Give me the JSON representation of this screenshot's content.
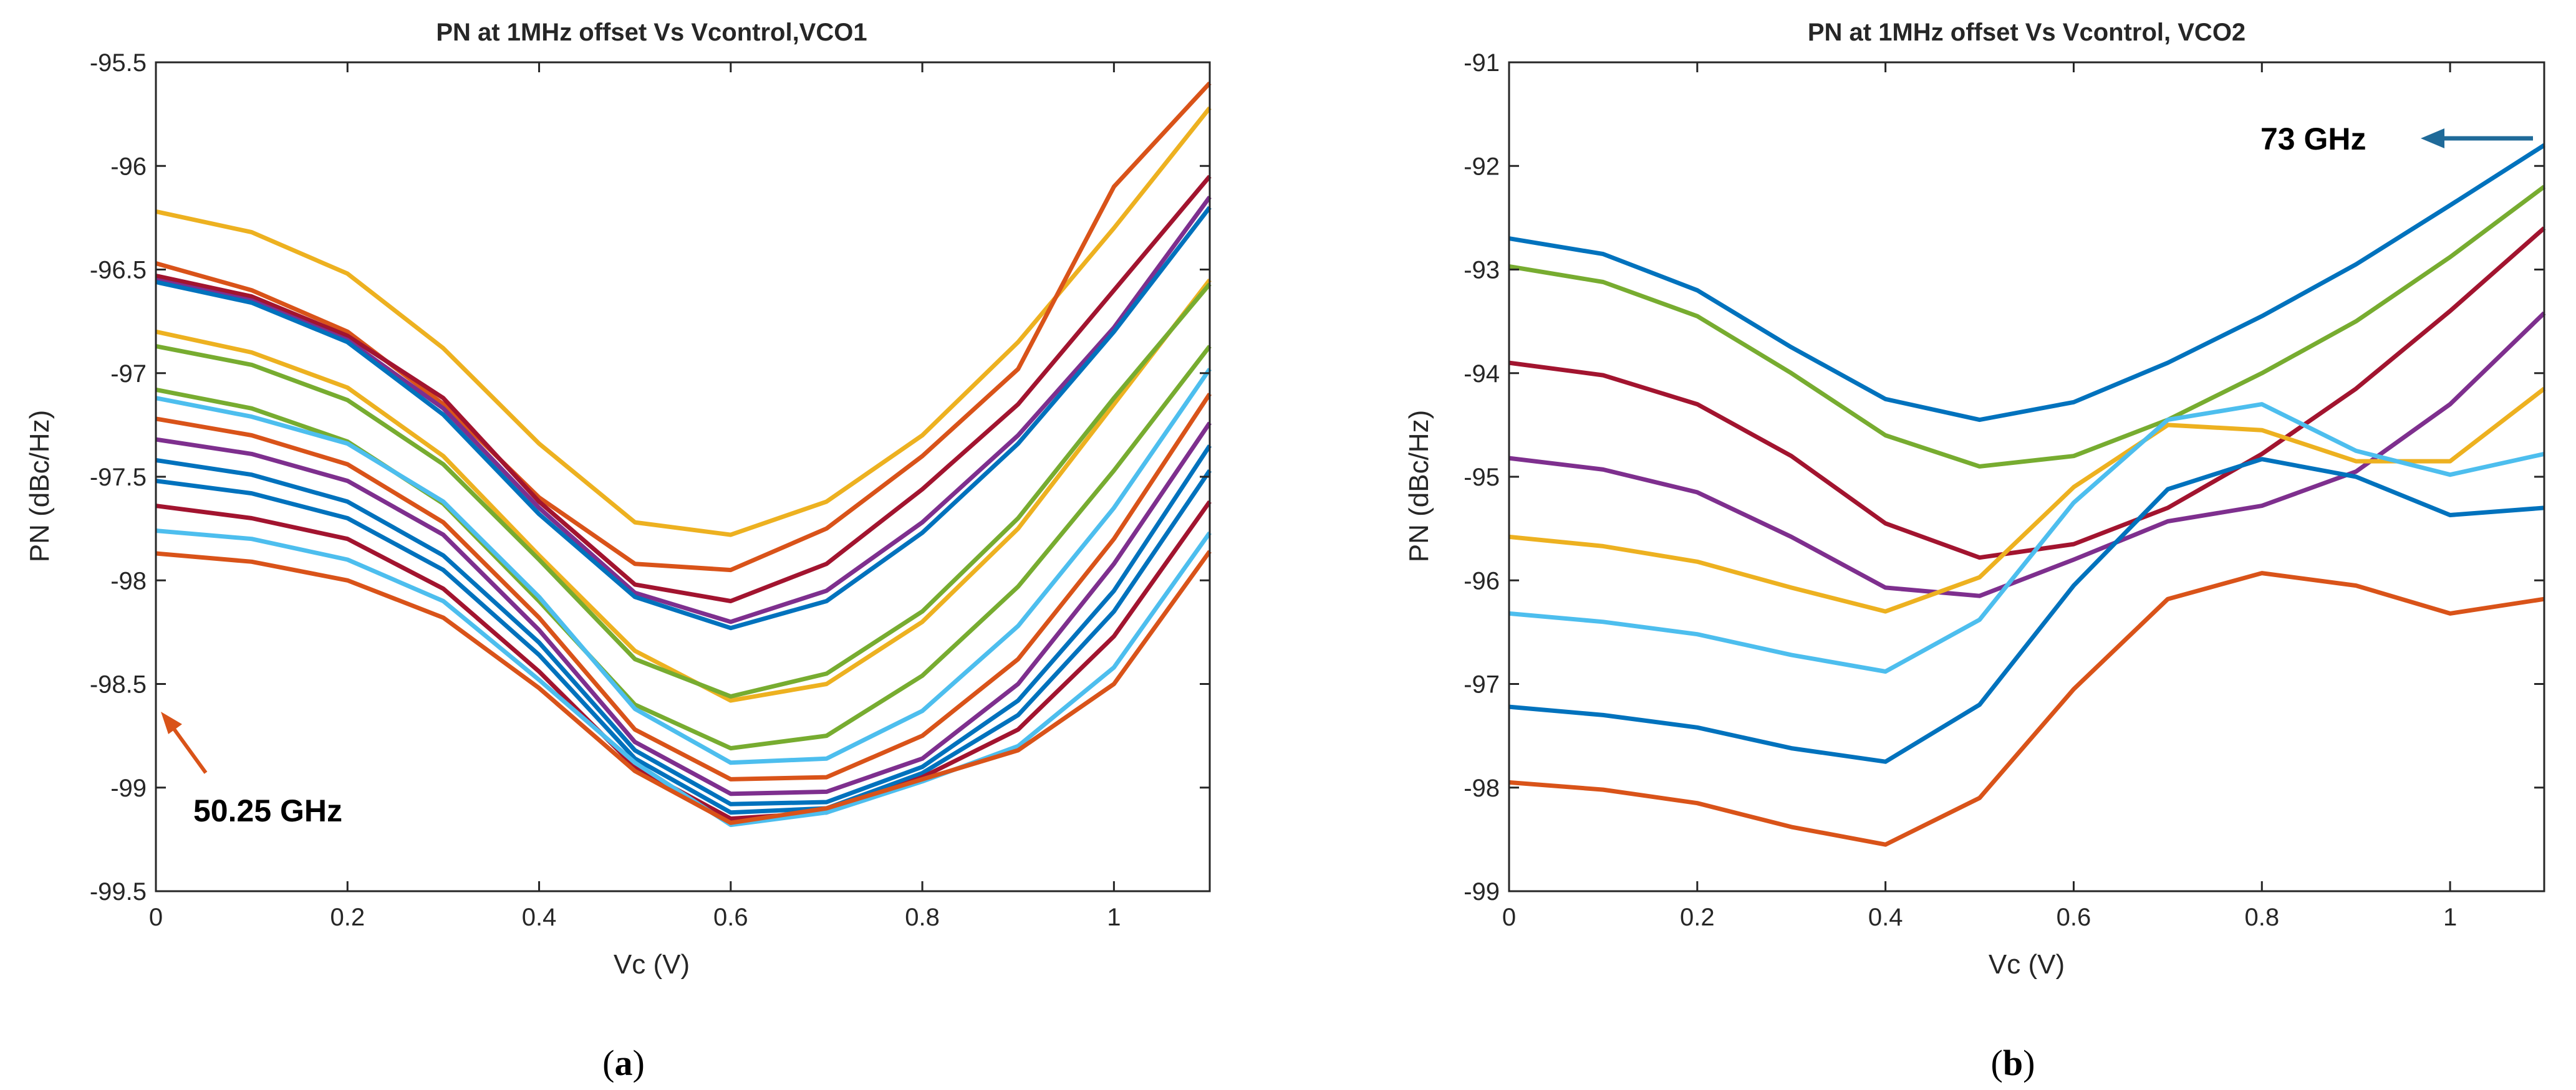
{
  "figure": {
    "caption_a": "(a)",
    "caption_b": "(b)",
    "caption_a_letter": "a",
    "caption_b_letter": "b"
  },
  "colors": [
    "#0072BD",
    "#D95319",
    "#EDB120",
    "#7E2F8E",
    "#77AC30",
    "#4DBEEE",
    "#A2142F"
  ],
  "chart_data": [
    {
      "type": "line",
      "id": "a",
      "title": "PN at 1MHz offset Vs Vcontrol,VCO1",
      "xlabel": "Vc (V)",
      "ylabel": "PN (dBc/Hz)",
      "xlim": [
        0,
        1.1
      ],
      "ylim": [
        -99.5,
        -95.5
      ],
      "xticks": [
        0,
        0.2,
        0.4,
        0.6,
        0.8,
        1
      ],
      "xtick_labels": [
        "0",
        "0.2",
        "0.4",
        "0.6",
        "0.8",
        "1"
      ],
      "yticks": [
        -95.5,
        -96,
        -96.5,
        -97,
        -97.5,
        -98,
        -98.5,
        -99,
        -99.5
      ],
      "ytick_labels": [
        "-95.5",
        "-96",
        "-96.5",
        "-97",
        "-97.5",
        "-98",
        "-98.5",
        "-99",
        "-99.5"
      ],
      "grid": false,
      "x": [
        0,
        0.1,
        0.2,
        0.3,
        0.4,
        0.5,
        0.6,
        0.7,
        0.8,
        0.9,
        1.0,
        1.1
      ],
      "annotation": {
        "text": "50.25 GHz",
        "x": 0.06,
        "y": -98.38,
        "arrow_from": [
          0.05,
          -98.3
        ],
        "arrow_to": [
          0.0,
          -97.95
        ],
        "color": "#D95319"
      },
      "series": [
        {
          "name": "s1",
          "color": "#EDB120",
          "values": [
            -96.22,
            -96.32,
            -96.52,
            -96.88,
            -97.34,
            -97.72,
            -97.78,
            -97.62,
            -97.3,
            -96.85,
            -96.3,
            -95.72
          ]
        },
        {
          "name": "s2",
          "color": "#D95319",
          "values": [
            -96.47,
            -96.6,
            -96.8,
            -97.15,
            -97.6,
            -97.92,
            -97.95,
            -97.75,
            -97.4,
            -96.98,
            -96.1,
            -95.6
          ]
        },
        {
          "name": "s3",
          "color": "#A2142F",
          "values": [
            -96.53,
            -96.63,
            -96.82,
            -97.12,
            -97.62,
            -98.02,
            -98.1,
            -97.92,
            -97.56,
            -97.15,
            -96.6,
            -96.05
          ]
        },
        {
          "name": "s4",
          "color": "#7E2F8E",
          "values": [
            -96.55,
            -96.65,
            -96.84,
            -97.17,
            -97.65,
            -98.06,
            -98.2,
            -98.05,
            -97.72,
            -97.3,
            -96.78,
            -96.15
          ]
        },
        {
          "name": "s5",
          "color": "#0072BD",
          "values": [
            -96.56,
            -96.66,
            -96.85,
            -97.2,
            -97.68,
            -98.08,
            -98.23,
            -98.1,
            -97.77,
            -97.34,
            -96.8,
            -96.2
          ]
        },
        {
          "name": "s6",
          "color": "#EDB120",
          "values": [
            -96.8,
            -96.9,
            -97.07,
            -97.4,
            -97.88,
            -98.34,
            -98.58,
            -98.5,
            -98.2,
            -97.75,
            -97.15,
            -96.55
          ]
        },
        {
          "name": "s7",
          "color": "#77AC30",
          "values": [
            -96.87,
            -96.96,
            -97.13,
            -97.44,
            -97.9,
            -98.38,
            -98.56,
            -98.45,
            -98.15,
            -97.7,
            -97.12,
            -96.57
          ]
        },
        {
          "name": "s8",
          "color": "#77AC30",
          "values": [
            -97.08,
            -97.17,
            -97.33,
            -97.63,
            -98.1,
            -98.6,
            -98.81,
            -98.75,
            -98.46,
            -98.03,
            -97.47,
            -96.87
          ]
        },
        {
          "name": "s9",
          "color": "#4DBEEE",
          "values": [
            -97.12,
            -97.21,
            -97.34,
            -97.62,
            -98.08,
            -98.62,
            -98.88,
            -98.86,
            -98.63,
            -98.22,
            -97.65,
            -96.98
          ]
        },
        {
          "name": "s10",
          "color": "#D95319",
          "values": [
            -97.22,
            -97.3,
            -97.44,
            -97.72,
            -98.18,
            -98.72,
            -98.96,
            -98.95,
            -98.75,
            -98.38,
            -97.8,
            -97.1
          ]
        },
        {
          "name": "s11",
          "color": "#7E2F8E",
          "values": [
            -97.32,
            -97.39,
            -97.52,
            -97.78,
            -98.24,
            -98.78,
            -99.03,
            -99.02,
            -98.86,
            -98.5,
            -97.92,
            -97.24
          ]
        },
        {
          "name": "s12",
          "color": "#0072BD",
          "values": [
            -97.42,
            -97.49,
            -97.62,
            -97.88,
            -98.3,
            -98.82,
            -99.08,
            -99.07,
            -98.9,
            -98.58,
            -98.05,
            -97.35
          ]
        },
        {
          "name": "s13",
          "color": "#0072BD",
          "values": [
            -97.52,
            -97.58,
            -97.7,
            -97.95,
            -98.36,
            -98.86,
            -99.12,
            -99.1,
            -98.93,
            -98.65,
            -98.15,
            -97.47
          ]
        },
        {
          "name": "s14",
          "color": "#A2142F",
          "values": [
            -97.64,
            -97.7,
            -97.8,
            -98.04,
            -98.44,
            -98.9,
            -99.15,
            -99.12,
            -98.95,
            -98.72,
            -98.27,
            -97.62
          ]
        },
        {
          "name": "s15",
          "color": "#4DBEEE",
          "values": [
            -97.76,
            -97.8,
            -97.9,
            -98.1,
            -98.48,
            -98.88,
            -99.18,
            -99.12,
            -98.97,
            -98.8,
            -98.42,
            -97.77
          ]
        },
        {
          "name": "s16",
          "color": "#D95319",
          "values": [
            -97.87,
            -97.91,
            -98.0,
            -98.18,
            -98.52,
            -98.92,
            -99.17,
            -99.1,
            -98.96,
            -98.82,
            -98.5,
            -97.86
          ]
        }
      ]
    },
    {
      "type": "line",
      "id": "b",
      "title": "PN at 1MHz offset Vs Vcontrol, VCO2",
      "xlabel": "Vc (V)",
      "ylabel": "PN (dBc/Hz)",
      "xlim": [
        0,
        1.1
      ],
      "ylim": [
        -99,
        -91
      ],
      "xticks": [
        0,
        0.2,
        0.4,
        0.6,
        0.8,
        1
      ],
      "xtick_labels": [
        "0",
        "0.2",
        "0.4",
        "0.6",
        "0.8",
        "1"
      ],
      "yticks": [
        -91,
        -92,
        -93,
        -94,
        -95,
        -96,
        -97,
        -98,
        -99
      ],
      "ytick_labels": [
        "-91",
        "-92",
        "-93",
        "-94",
        "-95",
        "-96",
        "-97",
        "-98",
        "-99"
      ],
      "grid": false,
      "x": [
        0,
        0.1,
        0.2,
        0.3,
        0.4,
        0.5,
        0.6,
        0.7,
        0.8,
        0.9,
        1.0,
        1.1
      ],
      "annotation": {
        "text": "73 GHz",
        "x": 0.78,
        "y": -91.85,
        "arrow_from": [
          1.08,
          -91.8
        ],
        "arrow_to": [
          0.95,
          -91.8
        ],
        "color": "#1F6A99"
      },
      "series": [
        {
          "name": "t1",
          "color": "#0072BD",
          "values": [
            -92.7,
            -92.85,
            -93.2,
            -93.75,
            -94.25,
            -94.45,
            -94.28,
            -93.9,
            -93.45,
            -92.95,
            -92.38,
            -91.8
          ]
        },
        {
          "name": "t2",
          "color": "#77AC30",
          "values": [
            -92.97,
            -93.12,
            -93.45,
            -94.0,
            -94.6,
            -94.9,
            -94.8,
            -94.45,
            -94.0,
            -93.5,
            -92.88,
            -92.2
          ]
        },
        {
          "name": "t3",
          "color": "#A2142F",
          "values": [
            -93.9,
            -94.02,
            -94.3,
            -94.8,
            -95.45,
            -95.78,
            -95.65,
            -95.3,
            -94.78,
            -94.15,
            -93.4,
            -92.6
          ]
        },
        {
          "name": "t4",
          "color": "#7E2F8E",
          "values": [
            -94.82,
            -94.93,
            -95.15,
            -95.58,
            -96.07,
            -96.15,
            -95.8,
            -95.43,
            -95.28,
            -94.95,
            -94.3,
            -93.42
          ]
        },
        {
          "name": "t5",
          "color": "#EDB120",
          "values": [
            -95.58,
            -95.67,
            -95.82,
            -96.07,
            -96.3,
            -95.97,
            -95.1,
            -94.5,
            -94.55,
            -94.85,
            -94.85,
            -94.15
          ]
        },
        {
          "name": "t6",
          "color": "#4DBEEE",
          "values": [
            -96.32,
            -96.4,
            -96.52,
            -96.72,
            -96.88,
            -96.38,
            -95.25,
            -94.45,
            -94.3,
            -94.75,
            -94.98,
            -94.78
          ]
        },
        {
          "name": "t7",
          "color": "#0072BD",
          "values": [
            -97.22,
            -97.3,
            -97.42,
            -97.62,
            -97.75,
            -97.2,
            -96.05,
            -95.12,
            -94.83,
            -95.0,
            -95.37,
            -95.3
          ]
        },
        {
          "name": "t8",
          "color": "#D95319",
          "values": [
            -97.95,
            -98.02,
            -98.15,
            -98.38,
            -98.55,
            -98.1,
            -97.05,
            -96.18,
            -95.93,
            -96.05,
            -96.32,
            -96.18
          ]
        }
      ]
    }
  ]
}
